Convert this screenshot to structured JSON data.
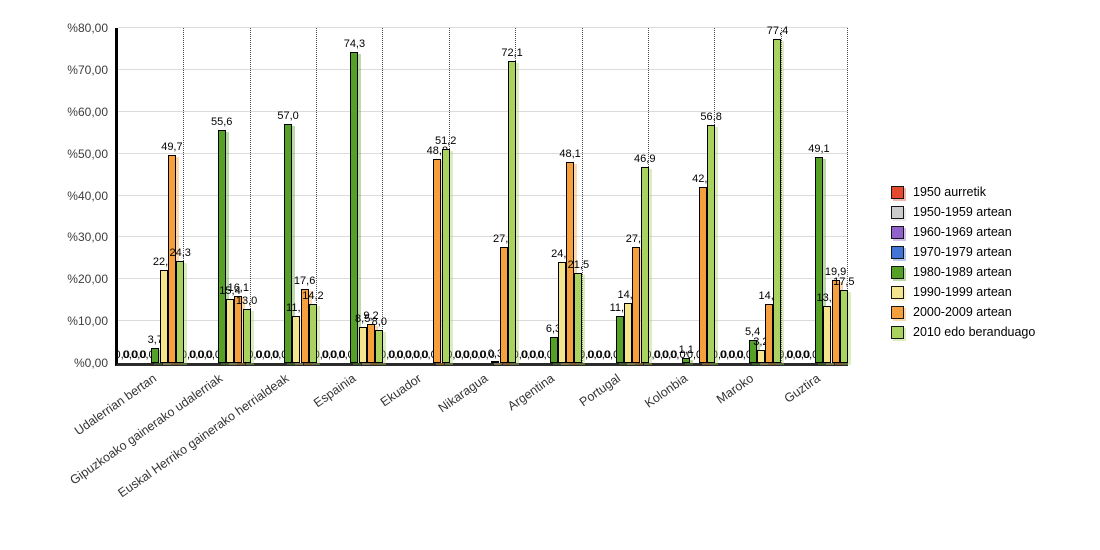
{
  "chart_data": {
    "type": "bar",
    "title": "",
    "categories": [
      "Udalerrian bertan",
      "Gipuzkoako gainerako udalerriak",
      "Euskal Herriko gainerako herrialdeak",
      "Espainia",
      "Ekuador",
      "Nikaragua",
      "Argentina",
      "Portugal",
      "Kolonbia",
      "Maroko",
      "Guztira"
    ],
    "series": [
      {
        "name": "1950 aurretik",
        "color": "#e64a2e",
        "values": [
          0,
          0,
          0,
          0,
          0,
          0,
          0,
          0,
          0,
          0,
          0
        ]
      },
      {
        "name": "1950-1959 artean",
        "color": "#cbcbcb",
        "values": [
          0,
          0,
          0,
          0,
          0,
          0,
          0,
          0,
          0,
          0,
          0
        ]
      },
      {
        "name": "1960-1969 artean",
        "color": "#8f63c9",
        "values": [
          0,
          0,
          0,
          0,
          0,
          0,
          0,
          0,
          0,
          0,
          0
        ]
      },
      {
        "name": "1970-1979 artean",
        "color": "#4274d6",
        "values": [
          0,
          0,
          0,
          0,
          0,
          0,
          0,
          0,
          0,
          0,
          0
        ]
      },
      {
        "name": "1980-1989 artean",
        "color": "#55a128",
        "values": [
          3.7,
          55.6,
          57.0,
          74.3,
          0,
          0,
          6.3,
          11.2,
          1.1,
          5.4,
          49.1
        ]
      },
      {
        "name": "1990-1999 artean",
        "color": "#f5e48e",
        "values": [
          22.2,
          15.4,
          11.2,
          8.5,
          0,
          0.3,
          24.1,
          14.3,
          0,
          3.2,
          13.5
        ]
      },
      {
        "name": "2000-2009 artean",
        "color": "#f5a03d",
        "values": [
          49.7,
          16.1,
          17.6,
          9.2,
          48.8,
          27.6,
          48.1,
          27.6,
          42.0,
          14.0,
          19.9
        ]
      },
      {
        "name": "2010 edo beranduago",
        "color": "#a9d35e",
        "values": [
          24.3,
          13.0,
          14.2,
          8.0,
          51.2,
          72.1,
          21.5,
          46.9,
          56.8,
          77.4,
          17.5
        ]
      }
    ],
    "ylim": [
      0,
      80
    ],
    "ytick_step": 10,
    "y_tick_labels": [
      "%0,00",
      "%10,00",
      "%20,00",
      "%30,00",
      "%40,00",
      "%50,00",
      "%60,00",
      "%70,00",
      "%80,00"
    ],
    "value_label_decimal_separator": ",",
    "grid": {
      "horizontal": true,
      "vertical_group_separators": "dotted"
    },
    "legend_position": "right",
    "axis_color": "#000000",
    "gridline_color": "#dcdcdc",
    "background_color": "#ffffff"
  }
}
